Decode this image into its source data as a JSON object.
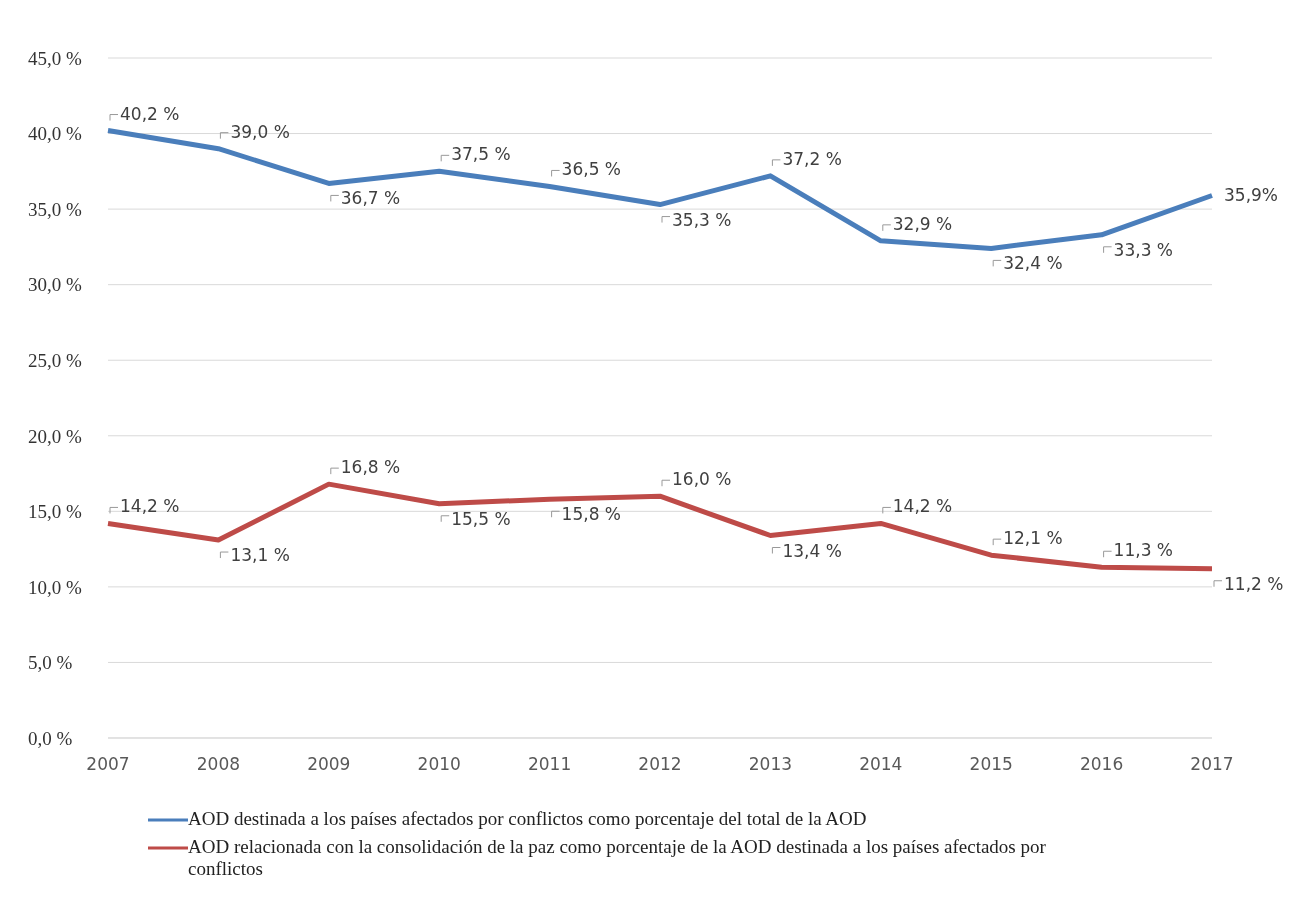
{
  "chart_data": {
    "type": "line",
    "categories": [
      "2007",
      "2008",
      "2009",
      "2010",
      "2011",
      "2012",
      "2013",
      "2014",
      "2015",
      "2016",
      "2017"
    ],
    "series": [
      {
        "name": "AOD destinada a los países afectados por conflictos como porcentaje del total de la AOD",
        "color": "#4a7ebb",
        "values": [
          40.2,
          39.0,
          36.7,
          37.5,
          36.5,
          35.3,
          37.2,
          32.9,
          32.4,
          33.3,
          35.9
        ],
        "value_labels": [
          "40,2 %",
          "39,0 %",
          "36,7 %",
          "37,5 %",
          "36,5 %",
          "35,3 %",
          "37,2 %",
          "32,9 %",
          "32,4 %",
          "33,3 %",
          "35,9%"
        ]
      },
      {
        "name": "AOD relacionada con la consolidación de la paz como porcentaje de la AOD destinada a los países afectados por conflictos",
        "color": "#be4b48",
        "values": [
          14.2,
          13.1,
          16.8,
          15.5,
          15.8,
          16.0,
          13.4,
          14.2,
          12.1,
          11.3,
          11.2
        ],
        "value_labels": [
          "14,2 %",
          "13,1 %",
          "16,8 %",
          "15,5 %",
          "15,8 %",
          "16,0 %",
          "13,4 %",
          "14,2 %",
          "12,1 %",
          "11,3 %",
          "11,2 %"
        ]
      }
    ],
    "ylim": [
      0,
      45
    ],
    "yticks": [
      {
        "value": 0,
        "label": "0,0 %"
      },
      {
        "value": 5,
        "label": "5,0 %"
      },
      {
        "value": 10,
        "label": "10,0 %"
      },
      {
        "value": 15,
        "label": "15,0 %"
      },
      {
        "value": 20,
        "label": "20,0 %"
      },
      {
        "value": 25,
        "label": "25,0 %"
      },
      {
        "value": 30,
        "label": "30,0 %"
      },
      {
        "value": 35,
        "label": "35,0 %"
      },
      {
        "value": 40,
        "label": "40,0 %"
      },
      {
        "value": 45,
        "label": "45,0 %"
      }
    ],
    "grid": "y",
    "legend": "bottom",
    "marker": "none",
    "line_style": "solid"
  }
}
